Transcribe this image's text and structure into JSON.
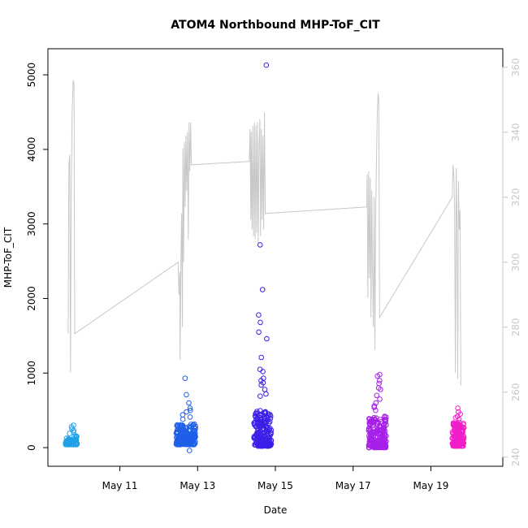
{
  "chart_data": {
    "type": "scatter",
    "title": "ATOM4 Northbound MHP-ToF_CIT",
    "xlabel": "Date",
    "ylabel": "MHP-ToF_CIT",
    "x_unit": "day of May",
    "xlim": [
      9.15,
      20.85
    ],
    "ylim": [
      -250,
      5350
    ],
    "y2lim": [
      237.2,
      365.7
    ],
    "x_ticks": [
      {
        "value": 11,
        "label": "May 11"
      },
      {
        "value": 13,
        "label": "May 13"
      },
      {
        "value": 15,
        "label": "May 15"
      },
      {
        "value": 17,
        "label": "May 17"
      },
      {
        "value": 19,
        "label": "May 19"
      }
    ],
    "y_ticks": [
      0,
      1000,
      2000,
      3000,
      4000,
      5000
    ],
    "y2_ticks": [
      240,
      260,
      280,
      300,
      320,
      340,
      360
    ],
    "grid": false,
    "legend": "none",
    "colors": {
      "axis": "#000000",
      "line": "#c8c8c8",
      "secondary_axis": "#c8c8c8"
    },
    "series": [
      {
        "kind": "points",
        "axis": "left",
        "color": "#1ea0e8",
        "x_range": [
          9.6,
          9.9
        ],
        "n": 70,
        "y_base": 40,
        "y_spread": 120,
        "y_outliers": [
          300,
          280,
          250,
          230,
          210,
          190,
          100,
          90
        ]
      },
      {
        "kind": "points",
        "axis": "left",
        "color": "#1f5fe8",
        "x_range": [
          12.45,
          12.95
        ],
        "n": 200,
        "y_base": 40,
        "y_spread": 280,
        "y_outliers": [
          930,
          710,
          600,
          530,
          500,
          480,
          440,
          410,
          380,
          -40
        ]
      },
      {
        "kind": "points",
        "axis": "left",
        "color": "#3b1fe8",
        "x_range": [
          14.45,
          14.9
        ],
        "n": 200,
        "y_base": 20,
        "y_spread": 480,
        "y_outliers": [
          5130,
          2720,
          2120,
          1780,
          1680,
          1550,
          1460,
          1210,
          1050,
          1020,
          930,
          900,
          870,
          840,
          780,
          720,
          690
        ]
      },
      {
        "kind": "points",
        "axis": "left",
        "color": "#a61fe8",
        "x_range": [
          17.4,
          17.85
        ],
        "n": 200,
        "y_base": 0,
        "y_spread": 420,
        "y_outliers": [
          980,
          960,
          900,
          860,
          800,
          780,
          700,
          650,
          600,
          560,
          540,
          500
        ]
      },
      {
        "kind": "points",
        "axis": "left",
        "color": "#f01fc8",
        "x_range": [
          19.55,
          19.85
        ],
        "n": 170,
        "y_base": 20,
        "y_spread": 320,
        "y_outliers": [
          530,
          480,
          450,
          420,
          400,
          380
        ]
      },
      {
        "kind": "line",
        "axis": "right",
        "color": "#c8c8c8",
        "points": [
          [
            9.67,
            278
          ],
          [
            9.69,
            330
          ],
          [
            9.71,
            333
          ],
          [
            9.73,
            266
          ],
          [
            9.75,
            320
          ],
          [
            9.77,
            345
          ],
          [
            9.8,
            356
          ],
          [
            9.82,
            355
          ],
          [
            9.84,
            278
          ],
          [
            12.5,
            300
          ],
          [
            12.52,
            290
          ],
          [
            12.54,
            297
          ],
          [
            12.55,
            270
          ],
          [
            12.57,
            300
          ],
          [
            12.59,
            315
          ],
          [
            12.61,
            280
          ],
          [
            12.62,
            335
          ],
          [
            12.64,
            300
          ],
          [
            12.66,
            337
          ],
          [
            12.68,
            317
          ],
          [
            12.7,
            339
          ],
          [
            12.72,
            322
          ],
          [
            12.74,
            340
          ],
          [
            12.76,
            307
          ],
          [
            12.78,
            343
          ],
          [
            12.8,
            328
          ],
          [
            12.82,
            343
          ],
          [
            12.84,
            330
          ],
          [
            14.33,
            331
          ],
          [
            14.35,
            341
          ],
          [
            14.37,
            313
          ],
          [
            14.38,
            340
          ],
          [
            14.4,
            310
          ],
          [
            14.42,
            342
          ],
          [
            14.44,
            308
          ],
          [
            14.46,
            343
          ],
          [
            14.48,
            307
          ],
          [
            14.5,
            342
          ],
          [
            14.52,
            309
          ],
          [
            14.54,
            343
          ],
          [
            14.56,
            306
          ],
          [
            14.58,
            335
          ],
          [
            14.6,
            344
          ],
          [
            14.62,
            308
          ],
          [
            14.64,
            341
          ],
          [
            14.66,
            313
          ],
          [
            14.68,
            339
          ],
          [
            14.7,
            310
          ],
          [
            14.72,
            346
          ],
          [
            14.74,
            315
          ],
          [
            17.35,
            317
          ],
          [
            17.36,
            327
          ],
          [
            17.38,
            289
          ],
          [
            17.4,
            328
          ],
          [
            17.42,
            295
          ],
          [
            17.44,
            326
          ],
          [
            17.46,
            283
          ],
          [
            17.48,
            322
          ],
          [
            17.5,
            297
          ],
          [
            17.52,
            280
          ],
          [
            17.54,
            320
          ],
          [
            17.56,
            273
          ],
          [
            17.58,
            315
          ],
          [
            17.6,
            330
          ],
          [
            17.62,
            345
          ],
          [
            17.64,
            352
          ],
          [
            17.66,
            350
          ],
          [
            17.68,
            283
          ],
          [
            19.55,
            320
          ],
          [
            19.57,
            330
          ],
          [
            19.59,
            327
          ],
          [
            19.61,
            318
          ],
          [
            19.63,
            266
          ],
          [
            19.65,
            329
          ],
          [
            19.67,
            313
          ],
          [
            19.69,
            264
          ],
          [
            19.71,
            325
          ],
          [
            19.73,
            310
          ],
          [
            19.75,
            316
          ],
          [
            19.77,
            262
          ]
        ]
      }
    ]
  }
}
